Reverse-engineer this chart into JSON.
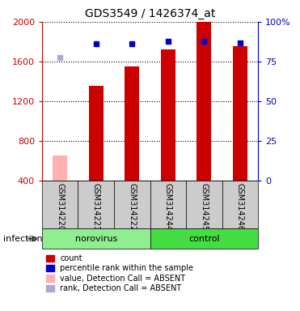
{
  "title": "GDS3549 / 1426374_at",
  "samples": [
    "GSM314220",
    "GSM314221",
    "GSM314222",
    "GSM314244",
    "GSM314245",
    "GSM314246"
  ],
  "bar_values": [
    650,
    1350,
    1550,
    1720,
    2000,
    1750
  ],
  "bar_colors": [
    "#ffb0b0",
    "#cc0000",
    "#cc0000",
    "#cc0000",
    "#cc0000",
    "#cc0000"
  ],
  "percentile_values": [
    1640,
    1780,
    1780,
    1800,
    1800,
    1790
  ],
  "percentile_colors": [
    "#aaaacc",
    "#0000cc",
    "#0000cc",
    "#0000cc",
    "#0000cc",
    "#0000cc"
  ],
  "ylim_left": [
    400,
    2000
  ],
  "ylim_right": [
    0,
    100
  ],
  "yticks_left": [
    400,
    800,
    1200,
    1600,
    2000
  ],
  "yticks_right": [
    0,
    25,
    50,
    75,
    100
  ],
  "groups": [
    {
      "label": "norovirus",
      "indices": [
        0,
        1,
        2
      ],
      "color": "#90ee90"
    },
    {
      "label": "control",
      "indices": [
        3,
        4,
        5
      ],
      "color": "#44dd44"
    }
  ],
  "infection_label": "infection",
  "legend_items": [
    {
      "color": "#cc0000",
      "label": "count"
    },
    {
      "color": "#0000cc",
      "label": "percentile rank within the sample"
    },
    {
      "color": "#ffb0b0",
      "label": "value, Detection Call = ABSENT"
    },
    {
      "color": "#aaaacc",
      "label": "rank, Detection Call = ABSENT"
    }
  ],
  "bar_width": 0.4,
  "left_color": "#cc0000",
  "right_color": "#0000cc"
}
